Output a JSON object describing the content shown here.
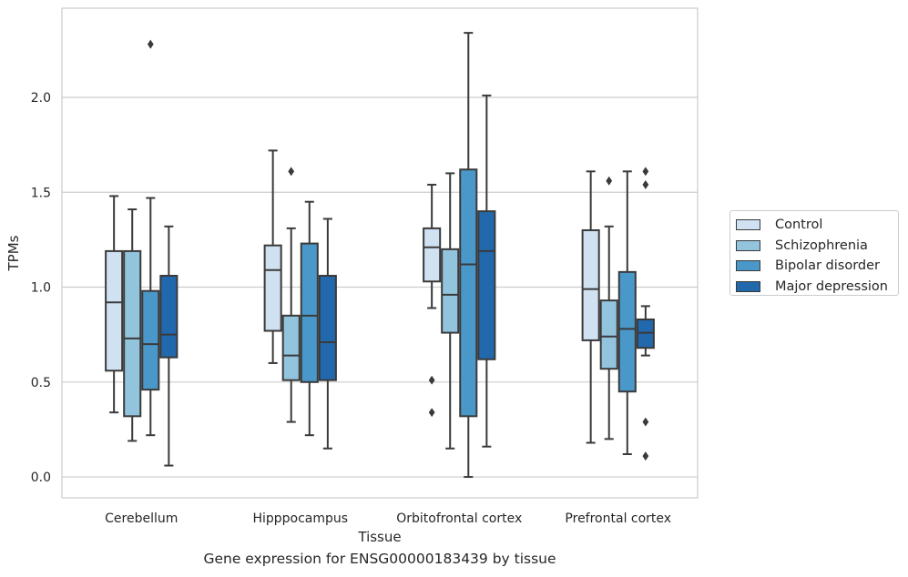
{
  "chart_data": {
    "type": "box",
    "caption": "Gene expression for ENSG00000183439 by tissue",
    "xlabel": "Tissue",
    "ylabel": "TPMs",
    "ylim": [
      -0.11,
      2.47
    ],
    "yticks": [
      "0.0",
      "0.5",
      "1.0",
      "1.5",
      "2.0"
    ],
    "ytick_values": [
      0.0,
      0.5,
      1.0,
      1.5,
      2.0
    ],
    "categories": [
      "Cerebellum",
      "Hipppocampus",
      "Orbitofrontal cortex",
      "Prefrontal cortex"
    ],
    "grid": true,
    "legend_position": "right",
    "series": [
      {
        "name": "Control",
        "color": "#d0e1f2",
        "boxes": [
          {
            "min": 0.34,
            "q1": 0.56,
            "median": 0.92,
            "q3": 1.19,
            "max": 1.48,
            "outliers": []
          },
          {
            "min": 0.6,
            "q1": 0.77,
            "median": 1.09,
            "q3": 1.22,
            "max": 1.72,
            "outliers": []
          },
          {
            "min": 0.89,
            "q1": 1.03,
            "median": 1.21,
            "q3": 1.31,
            "max": 1.54,
            "outliers": [
              0.51,
              0.34
            ]
          },
          {
            "min": 0.18,
            "q1": 0.72,
            "median": 0.99,
            "q3": 1.3,
            "max": 1.61,
            "outliers": []
          }
        ]
      },
      {
        "name": "Schizophrenia",
        "color": "#93c4de",
        "boxes": [
          {
            "min": 0.19,
            "q1": 0.32,
            "median": 0.73,
            "q3": 1.19,
            "max": 1.41,
            "outliers": []
          },
          {
            "min": 0.29,
            "q1": 0.51,
            "median": 0.64,
            "q3": 0.85,
            "max": 1.31,
            "outliers": [
              1.61
            ]
          },
          {
            "min": 0.15,
            "q1": 0.76,
            "median": 0.96,
            "q3": 1.2,
            "max": 1.6,
            "outliers": []
          },
          {
            "min": 0.2,
            "q1": 0.57,
            "median": 0.74,
            "q3": 0.93,
            "max": 1.32,
            "outliers": [
              1.56
            ]
          }
        ]
      },
      {
        "name": "Bipolar disorder",
        "color": "#4a98c9",
        "boxes": [
          {
            "min": 0.22,
            "q1": 0.46,
            "median": 0.7,
            "q3": 0.98,
            "max": 1.47,
            "outliers": [
              2.28
            ]
          },
          {
            "min": 0.22,
            "q1": 0.5,
            "median": 0.85,
            "q3": 1.23,
            "max": 1.45,
            "outliers": []
          },
          {
            "min": 0.0,
            "q1": 0.32,
            "median": 1.12,
            "q3": 1.62,
            "max": 2.34,
            "outliers": []
          },
          {
            "min": 0.12,
            "q1": 0.45,
            "median": 0.78,
            "q3": 1.08,
            "max": 1.61,
            "outliers": []
          }
        ]
      },
      {
        "name": "Major depression",
        "color": "#2268ad",
        "boxes": [
          {
            "min": 0.06,
            "q1": 0.63,
            "median": 0.75,
            "q3": 1.06,
            "max": 1.32,
            "outliers": []
          },
          {
            "min": 0.15,
            "q1": 0.51,
            "median": 0.71,
            "q3": 1.06,
            "max": 1.36,
            "outliers": []
          },
          {
            "min": 0.16,
            "q1": 0.62,
            "median": 1.19,
            "q3": 1.4,
            "max": 2.01,
            "outliers": []
          },
          {
            "min": 0.64,
            "q1": 0.68,
            "median": 0.76,
            "q3": 0.83,
            "max": 0.9,
            "outliers": [
              1.61,
              1.54,
              0.29,
              0.11
            ]
          }
        ]
      }
    ]
  }
}
